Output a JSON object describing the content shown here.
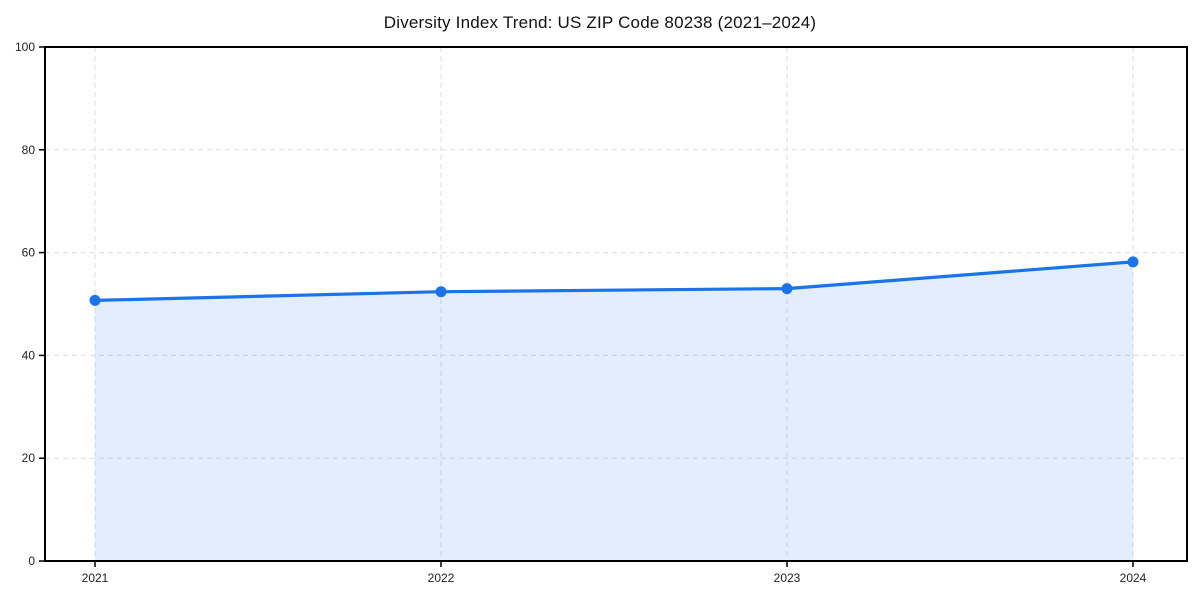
{
  "title": "Diversity Index Trend: US ZIP Code 80238 (2021–2024)",
  "chart_data": {
    "type": "area",
    "title": "Diversity Index Trend: US ZIP Code 80238 (2021–2024)",
    "categories": [
      "2021",
      "2022",
      "2023",
      "2024"
    ],
    "series": [
      {
        "name": "Diversity Index",
        "values": [
          50.7,
          52.4,
          53.0,
          58.2
        ]
      }
    ],
    "xlabel": "",
    "ylabel": "",
    "ylim": [
      0,
      100
    ],
    "yticks": [
      0,
      20,
      40,
      60,
      80,
      100
    ],
    "grid": "dashed both axes",
    "legend_position": "none",
    "line_color": "#1a73e8",
    "marker_color": "#1a73e8",
    "fill_color": "#1a73e8",
    "fill_opacity": 0.12,
    "gridline_color": "#dcdcdc",
    "spine_color": "#000000",
    "background_color": "#ffffff"
  }
}
